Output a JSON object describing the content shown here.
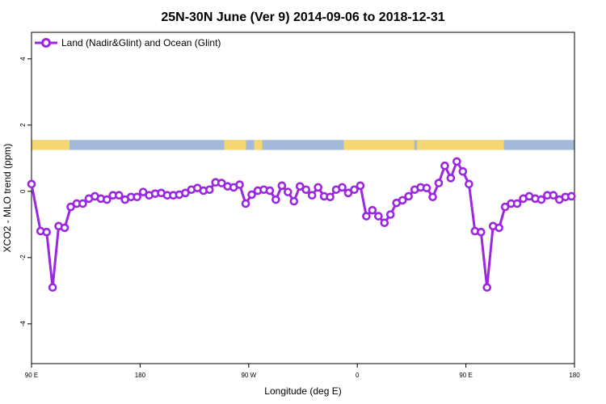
{
  "chart_data": {
    "type": "line",
    "title": "25N-30N June (Ver 9)   2014-09-06 to 2018-12-31",
    "xlabel": "Longitude (deg E)",
    "ylabel": "XCO2 - MLO trend (ppm)",
    "xlim": [
      0,
      100
    ],
    "ylim": [
      -5.2,
      4.8
    ],
    "xticks": [
      {
        "pos": 0,
        "label": "90 E"
      },
      {
        "pos": 20,
        "label": "180"
      },
      {
        "pos": 40,
        "label": "90 W"
      },
      {
        "pos": 60,
        "label": "0"
      },
      {
        "pos": 80,
        "label": "90 E"
      },
      {
        "pos": 100,
        "label": "180"
      }
    ],
    "yticks": [
      {
        "value": 4,
        "label": "4"
      },
      {
        "value": 2,
        "label": "2"
      },
      {
        "value": 0,
        "label": "0"
      },
      {
        "value": -2,
        "label": "-2"
      },
      {
        "value": -4,
        "label": "-4"
      }
    ],
    "legend": {
      "position": "top-left"
    },
    "series": [
      {
        "name": "Land (Nadir&Glint) and Ocean (Glint)",
        "color": "#9b27e0",
        "x": [
          0,
          1.67,
          2.78,
          3.89,
          5.0,
          6.11,
          7.22,
          8.33,
          9.44,
          10.56,
          11.67,
          12.78,
          13.89,
          15.0,
          16.11,
          17.22,
          18.33,
          19.44,
          20.56,
          21.67,
          22.78,
          23.89,
          25.0,
          26.11,
          27.22,
          28.33,
          29.44,
          30.56,
          31.67,
          32.78,
          33.89,
          35.0,
          36.11,
          37.22,
          38.33,
          39.44,
          40.56,
          41.67,
          42.78,
          43.89,
          45.0,
          46.11,
          47.22,
          48.33,
          49.44,
          50.56,
          51.67,
          52.78,
          53.89,
          55.0,
          56.11,
          57.22,
          58.33,
          59.44,
          60.56,
          61.67,
          62.78,
          63.89,
          65.0,
          66.11,
          67.22,
          68.33,
          69.44,
          70.56,
          71.67,
          72.78,
          73.89,
          75.0,
          76.11,
          77.22,
          78.33,
          79.44,
          80.56,
          81.67,
          82.78,
          83.89,
          85.0,
          86.11,
          87.22,
          88.33,
          89.44,
          90.56,
          91.67,
          92.78,
          93.89,
          95.0,
          96.11,
          97.22,
          98.33,
          99.44
        ],
        "values": [
          0.22,
          -1.2,
          -1.23,
          -2.9,
          -1.05,
          -1.1,
          -0.47,
          -0.37,
          -0.37,
          -0.22,
          -0.15,
          -0.22,
          -0.25,
          -0.12,
          -0.12,
          -0.25,
          -0.17,
          -0.17,
          -0.02,
          -0.12,
          -0.07,
          -0.05,
          -0.12,
          -0.12,
          -0.1,
          -0.05,
          0.05,
          0.1,
          0.02,
          0.05,
          0.27,
          0.25,
          0.15,
          0.12,
          0.2,
          -0.37,
          -0.1,
          0.02,
          0.05,
          0.02,
          -0.25,
          0.17,
          -0.02,
          -0.3,
          0.15,
          0.05,
          -0.12,
          0.12,
          -0.15,
          -0.17,
          0.05,
          0.12,
          -0.05,
          0.05,
          0.17,
          -0.75,
          -0.57,
          -0.75,
          -0.95,
          -0.7,
          -0.35,
          -0.27,
          -0.15,
          0.05,
          0.12,
          0.1,
          -0.17,
          0.25,
          0.77,
          0.4,
          0.9,
          0.6,
          0.22,
          -1.2,
          -1.23,
          -2.9,
          -1.05,
          -1.1,
          -0.47,
          -0.37,
          -0.37,
          -0.22,
          -0.15,
          -0.22,
          -0.25,
          -0.12,
          -0.12,
          -0.25,
          -0.17,
          -0.15
        ]
      }
    ],
    "land_mask_band": {
      "y_range": [
        1.25,
        1.55
      ],
      "ocean_color": "#a3b9d9",
      "land_color": "#f6d66e",
      "land_segments": [
        [
          0,
          7.0
        ],
        [
          35.5,
          39.5
        ],
        [
          41.0,
          42.5
        ],
        [
          57.5,
          70.5
        ],
        [
          71.0,
          72.0
        ],
        [
          72.0,
          87.0
        ]
      ]
    }
  }
}
